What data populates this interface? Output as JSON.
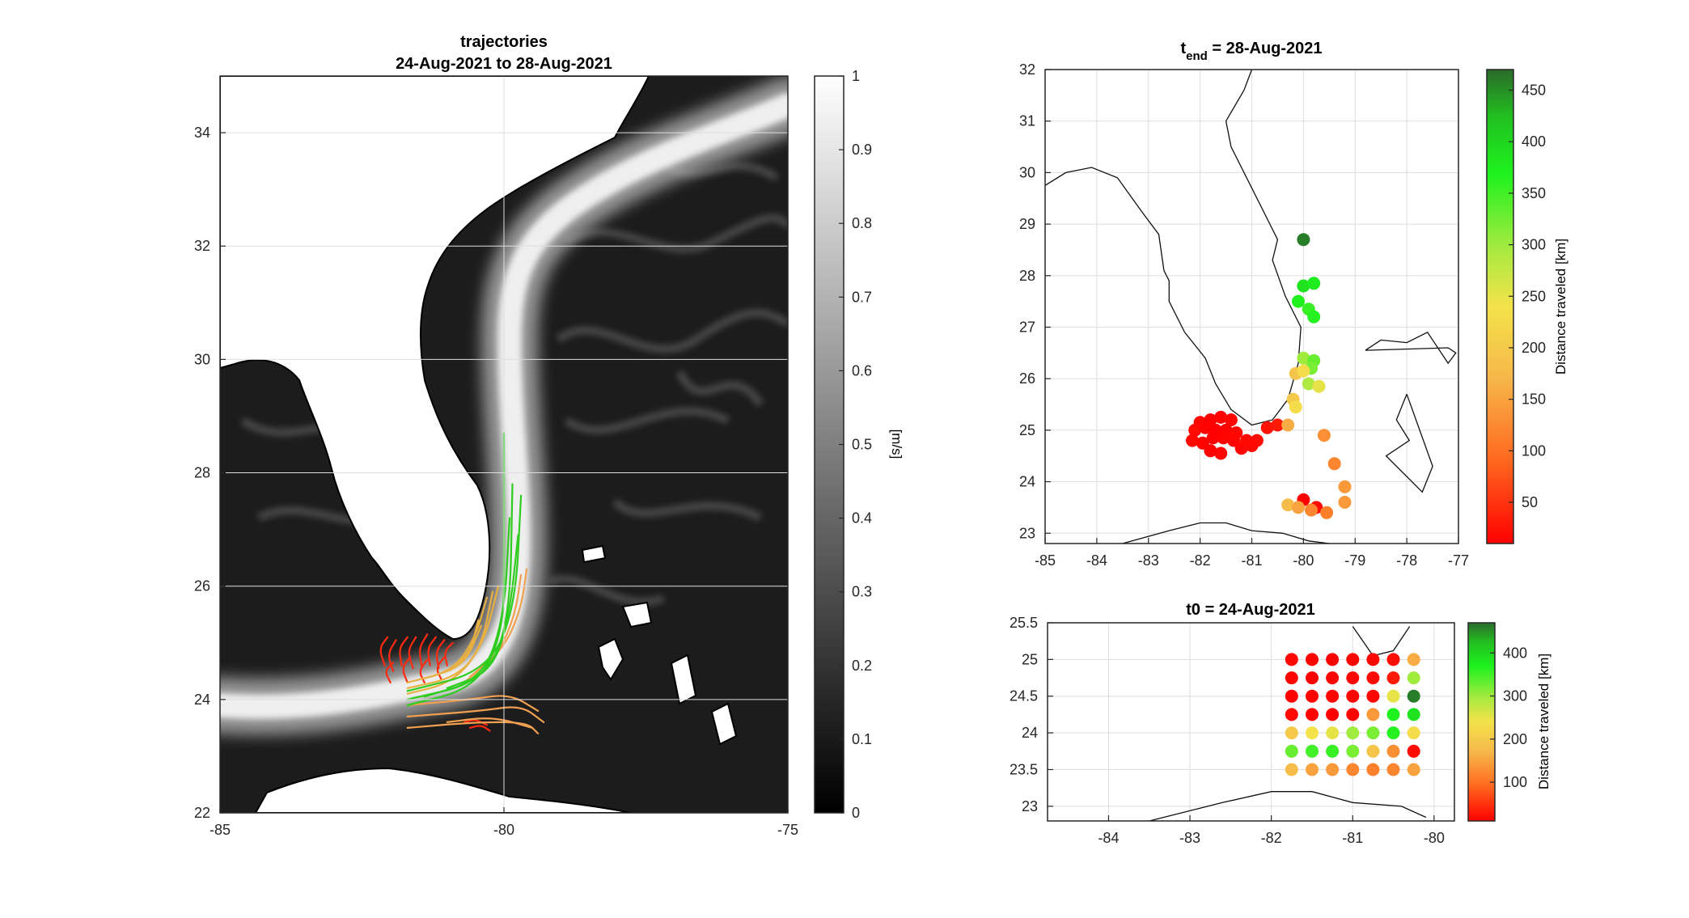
{
  "chart_data": [
    {
      "type": "heatmap",
      "title_line1": "trajectories",
      "title_line2": "24-Aug-2021 to 28-Aug-2021",
      "xlabel": "",
      "ylabel": "",
      "xlim": [
        -85,
        -75
      ],
      "ylim": [
        22,
        35
      ],
      "xticks": [
        -85,
        -80,
        -75
      ],
      "yticks": [
        22,
        24,
        26,
        28,
        30,
        32,
        34
      ],
      "grid": true,
      "colorbar": {
        "label": "[m/s]",
        "range": [
          0,
          1
        ],
        "ticks": [
          0,
          0.1,
          0.2,
          0.3,
          0.4,
          0.5,
          0.6,
          0.7,
          0.8,
          0.9,
          1
        ],
        "colormap": "gray"
      },
      "trajectory_groups": [
        {
          "color": "#ff2a10",
          "paths": [
            [
              [
                -82.1,
                24.6
              ],
              [
                -82.2,
                24.9
              ],
              [
                -82.05,
                25.1
              ]
            ],
            [
              [
                -81.95,
                24.5
              ],
              [
                -82.05,
                24.8
              ],
              [
                -81.9,
                25.05
              ]
            ],
            [
              [
                -81.8,
                24.6
              ],
              [
                -81.85,
                24.9
              ],
              [
                -81.7,
                25.1
              ]
            ],
            [
              [
                -81.6,
                24.55
              ],
              [
                -81.7,
                24.85
              ],
              [
                -81.55,
                25.1
              ]
            ],
            [
              [
                -81.45,
                24.6
              ],
              [
                -81.5,
                24.9
              ],
              [
                -81.35,
                25.15
              ]
            ],
            [
              [
                -81.3,
                24.6
              ],
              [
                -81.35,
                24.9
              ],
              [
                -81.2,
                25.1
              ]
            ],
            [
              [
                -81.15,
                24.55
              ],
              [
                -81.2,
                24.85
              ],
              [
                -81.05,
                25.05
              ]
            ],
            [
              [
                -81.0,
                24.6
              ],
              [
                -81.05,
                24.85
              ],
              [
                -80.9,
                25.0
              ]
            ],
            [
              [
                -82.0,
                24.3
              ],
              [
                -82.1,
                24.5
              ],
              [
                -81.95,
                24.65
              ]
            ],
            [
              [
                -81.7,
                24.3
              ],
              [
                -81.8,
                24.55
              ],
              [
                -81.65,
                24.75
              ]
            ],
            [
              [
                -81.4,
                24.3
              ],
              [
                -81.5,
                24.5
              ],
              [
                -81.35,
                24.7
              ]
            ],
            [
              [
                -81.1,
                24.35
              ],
              [
                -81.2,
                24.55
              ],
              [
                -81.05,
                24.75
              ]
            ],
            [
              [
                -80.7,
                23.6
              ],
              [
                -80.5,
                23.65
              ],
              [
                -80.3,
                23.55
              ]
            ],
            [
              [
                -80.6,
                23.5
              ],
              [
                -80.4,
                23.55
              ],
              [
                -80.25,
                23.45
              ]
            ]
          ]
        },
        {
          "color": "#e8b040",
          "paths": [
            [
              [
                -81.7,
                24.1
              ],
              [
                -80.9,
                24.3
              ],
              [
                -80.4,
                24.9
              ],
              [
                -80.2,
                25.9
              ]
            ],
            [
              [
                -81.7,
                24.2
              ],
              [
                -80.8,
                24.4
              ],
              [
                -80.35,
                25.0
              ],
              [
                -80.1,
                26.0
              ]
            ],
            [
              [
                -81.7,
                24.3
              ],
              [
                -80.9,
                24.5
              ],
              [
                -80.5,
                25.1
              ],
              [
                -80.3,
                25.8
              ]
            ],
            [
              [
                -81.3,
                24.4
              ],
              [
                -80.7,
                24.6
              ],
              [
                -80.4,
                25.3
              ]
            ],
            [
              [
                -81.0,
                24.5
              ],
              [
                -80.6,
                24.8
              ],
              [
                -80.45,
                25.4
              ]
            ]
          ]
        },
        {
          "color": "#f0a050",
          "paths": [
            [
              [
                -81.7,
                23.5
              ],
              [
                -80.5,
                23.6
              ],
              [
                -79.6,
                23.6
              ],
              [
                -79.4,
                23.4
              ]
            ],
            [
              [
                -81.7,
                23.7
              ],
              [
                -80.4,
                23.8
              ],
              [
                -79.7,
                23.9
              ],
              [
                -79.3,
                23.6
              ]
            ],
            [
              [
                -81.7,
                23.9
              ],
              [
                -80.6,
                24.0
              ],
              [
                -79.9,
                24.1
              ],
              [
                -79.4,
                23.8
              ]
            ],
            [
              [
                -81.0,
                23.6
              ],
              [
                -80.2,
                23.7
              ],
              [
                -79.5,
                23.5
              ]
            ],
            [
              [
                -80.6,
                24.4
              ],
              [
                -80.0,
                24.9
              ],
              [
                -79.7,
                25.6
              ],
              [
                -79.6,
                26.3
              ]
            ],
            [
              [
                -80.7,
                24.3
              ],
              [
                -80.1,
                24.8
              ],
              [
                -79.8,
                25.5
              ],
              [
                -79.7,
                26.2
              ]
            ]
          ]
        },
        {
          "color": "#2fcc20",
          "paths": [
            [
              [
                -81.7,
                23.9
              ],
              [
                -80.5,
                24.2
              ],
              [
                -80.0,
                25.2
              ],
              [
                -80.0,
                26.8
              ],
              [
                -80.0,
                28.7
              ]
            ],
            [
              [
                -81.7,
                24.0
              ],
              [
                -80.4,
                24.3
              ],
              [
                -79.9,
                25.3
              ],
              [
                -79.85,
                27.8
              ]
            ],
            [
              [
                -81.7,
                24.15
              ],
              [
                -80.3,
                24.5
              ],
              [
                -79.8,
                25.6
              ],
              [
                -79.7,
                27.6
              ]
            ],
            [
              [
                -81.4,
                24.05
              ],
              [
                -80.4,
                24.35
              ],
              [
                -80.0,
                25.4
              ],
              [
                -79.9,
                27.2
              ]
            ],
            [
              [
                -81.0,
                24.2
              ],
              [
                -80.2,
                24.5
              ],
              [
                -79.9,
                25.5
              ],
              [
                -79.75,
                26.9
              ]
            ]
          ]
        }
      ]
    },
    {
      "type": "scatter",
      "title_main": "t",
      "title_sub": "end",
      "title_rest": " = 28-Aug-2021",
      "xlabel": "",
      "ylabel": "",
      "xlim": [
        -85,
        -77
      ],
      "ylim": [
        22.8,
        32
      ],
      "xticks": [
        -85,
        -84,
        -83,
        -82,
        -81,
        -80,
        -79,
        -78,
        -77
      ],
      "yticks": [
        23,
        24,
        25,
        26,
        27,
        28,
        29,
        30,
        31,
        32
      ],
      "grid": true,
      "colorbar": {
        "label": "Distance traveled [km]",
        "range": [
          10,
          470
        ],
        "ticks": [
          50,
          100,
          150,
          200,
          250,
          300,
          350,
          400,
          450
        ],
        "colormap": "red-orange-yellow-green"
      },
      "points": [
        [
          -80.0,
          28.7,
          460
        ],
        [
          -80.0,
          27.8,
          385
        ],
        [
          -79.8,
          27.85,
          375
        ],
        [
          -80.1,
          27.5,
          370
        ],
        [
          -79.9,
          27.35,
          355
        ],
        [
          -79.8,
          27.2,
          365
        ],
        [
          -80.0,
          26.4,
          300
        ],
        [
          -79.8,
          26.35,
          330
        ],
        [
          -79.85,
          26.2,
          320
        ],
        [
          -80.15,
          26.1,
          190
        ],
        [
          -80.0,
          26.15,
          230
        ],
        [
          -79.9,
          25.9,
          290
        ],
        [
          -79.7,
          25.85,
          250
        ],
        [
          -80.2,
          25.6,
          200
        ],
        [
          -80.15,
          25.45,
          230
        ],
        [
          -82.0,
          25.15,
          15
        ],
        [
          -81.8,
          25.2,
          10
        ],
        [
          -81.6,
          25.25,
          12
        ],
        [
          -81.4,
          25.2,
          15
        ],
        [
          -82.1,
          25.0,
          20
        ],
        [
          -81.9,
          25.05,
          12
        ],
        [
          -81.7,
          25.0,
          10
        ],
        [
          -81.5,
          25.0,
          12
        ],
        [
          -81.3,
          24.95,
          15
        ],
        [
          -82.15,
          24.8,
          18
        ],
        [
          -81.95,
          24.75,
          12
        ],
        [
          -81.75,
          24.85,
          10
        ],
        [
          -81.55,
          24.85,
          12
        ],
        [
          -81.35,
          24.8,
          14
        ],
        [
          -81.1,
          24.8,
          18
        ],
        [
          -80.9,
          24.8,
          20
        ],
        [
          -81.8,
          24.6,
          12
        ],
        [
          -81.6,
          24.55,
          15
        ],
        [
          -81.2,
          24.65,
          15
        ],
        [
          -81.0,
          24.7,
          16
        ],
        [
          -80.7,
          25.05,
          25
        ],
        [
          -80.5,
          25.1,
          30
        ],
        [
          -80.3,
          25.1,
          160
        ],
        [
          -79.6,
          24.9,
          130
        ],
        [
          -79.4,
          24.35,
          120
        ],
        [
          -79.2,
          23.9,
          140
        ],
        [
          -80.0,
          23.65,
          10
        ],
        [
          -79.75,
          23.5,
          20
        ],
        [
          -80.3,
          23.55,
          180
        ],
        [
          -80.1,
          23.5,
          150
        ],
        [
          -79.85,
          23.45,
          120
        ],
        [
          -79.55,
          23.4,
          115
        ],
        [
          -79.2,
          23.6,
          140
        ]
      ],
      "coast_segments": [
        [
          [
            -85.0,
            29.75
          ],
          [
            -84.6,
            30.0
          ],
          [
            -84.1,
            30.1
          ],
          [
            -83.6,
            29.9
          ],
          [
            -83.1,
            29.2
          ],
          [
            -82.8,
            28.8
          ],
          [
            -82.7,
            28.1
          ],
          [
            -82.6,
            27.9
          ],
          [
            -82.6,
            27.5
          ],
          [
            -82.3,
            26.9
          ],
          [
            -81.9,
            26.4
          ],
          [
            -81.7,
            25.9
          ],
          [
            -81.4,
            25.4
          ],
          [
            -81.0,
            25.1
          ],
          [
            -80.6,
            25.2
          ],
          [
            -80.3,
            25.6
          ],
          [
            -80.1,
            26.3
          ],
          [
            -80.05,
            27.0
          ],
          [
            -80.35,
            27.6
          ],
          [
            -80.6,
            28.3
          ],
          [
            -80.5,
            28.7
          ],
          [
            -80.8,
            29.3
          ],
          [
            -81.4,
            30.5
          ],
          [
            -81.5,
            31.0
          ],
          [
            -81.15,
            31.6
          ],
          [
            -81.0,
            32.0
          ]
        ],
        [
          [
            -83.5,
            22.8
          ],
          [
            -82.6,
            23.05
          ],
          [
            -82.0,
            23.2
          ],
          [
            -81.5,
            23.2
          ],
          [
            -81.0,
            23.05
          ],
          [
            -80.4,
            23.0
          ],
          [
            -79.9,
            22.85
          ],
          [
            -79.5,
            22.8
          ]
        ],
        [
          [
            -78.0,
            25.7
          ],
          [
            -78.2,
            25.2
          ],
          [
            -77.95,
            24.8
          ],
          [
            -78.4,
            24.5
          ],
          [
            -77.7,
            23.8
          ],
          [
            -77.5,
            24.3
          ],
          [
            -78.0,
            25.7
          ]
        ],
        [
          [
            -78.8,
            26.55
          ],
          [
            -78.5,
            26.75
          ],
          [
            -78.0,
            26.7
          ],
          [
            -77.6,
            26.9
          ],
          [
            -77.2,
            26.3
          ],
          [
            -77.05,
            26.5
          ],
          [
            -77.2,
            26.6
          ],
          [
            -78.8,
            26.55
          ]
        ]
      ]
    },
    {
      "type": "scatter",
      "title": "t0 = 24-Aug-2021",
      "xlabel": "",
      "ylabel": "",
      "xlim": [
        -84.75,
        -79.75
      ],
      "ylim": [
        22.8,
        25.5
      ],
      "xticks": [
        -84,
        -83,
        -82,
        -81,
        -80
      ],
      "yticks": [
        23,
        23.5,
        24,
        24.5,
        25,
        25.5
      ],
      "grid": true,
      "colorbar": {
        "label": "Distance traveled [km]",
        "range": [
          10,
          470
        ],
        "ticks": [
          100,
          200,
          300,
          400
        ],
        "colormap": "red-orange-yellow-green"
      },
      "grid_x": [
        -81.75,
        -81.5,
        -81.25,
        -81.0,
        -80.75,
        -80.5,
        -80.25
      ],
      "grid_y": [
        25.0,
        24.75,
        24.5,
        24.25,
        24.0,
        23.75,
        23.5
      ],
      "values": [
        [
          15,
          12,
          10,
          12,
          15,
          20,
          160
        ],
        [
          12,
          10,
          12,
          15,
          18,
          30,
          300
        ],
        [
          10,
          12,
          15,
          12,
          14,
          250,
          460
        ],
        [
          18,
          12,
          10,
          12,
          140,
          370,
          385
        ],
        [
          200,
          240,
          250,
          300,
          320,
          365,
          230
        ],
        [
          330,
          350,
          355,
          320,
          190,
          130,
          20
        ],
        [
          180,
          150,
          140,
          120,
          115,
          120,
          150
        ]
      ],
      "coast_segments": [
        [
          [
            -81.0,
            25.45
          ],
          [
            -80.75,
            25.05
          ],
          [
            -80.5,
            25.12
          ],
          [
            -80.3,
            25.45
          ]
        ],
        [
          [
            -83.5,
            22.8
          ],
          [
            -82.6,
            23.05
          ],
          [
            -82.0,
            23.2
          ],
          [
            -81.5,
            23.2
          ],
          [
            -81.0,
            23.05
          ],
          [
            -80.4,
            23.0
          ],
          [
            -80.1,
            22.85
          ]
        ]
      ]
    }
  ]
}
